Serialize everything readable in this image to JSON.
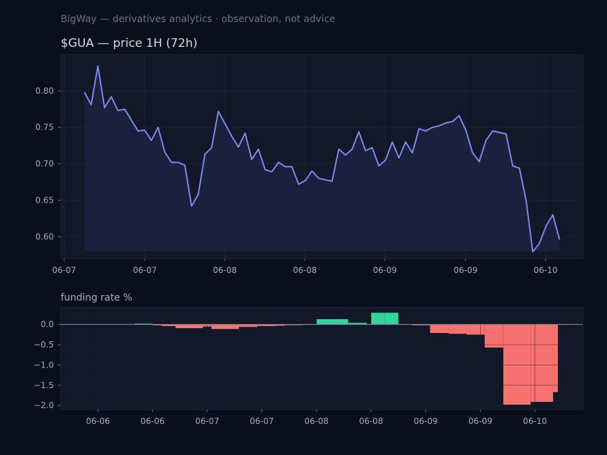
{
  "header": {
    "note": "BigWay — derivatives analytics · observation, not advice"
  },
  "colors": {
    "background": "#0a0f1c",
    "panel": "#121828",
    "price_line": "#7f89f0",
    "price_fill": "#1b2340",
    "funding_positive": "#34d399",
    "funding_negative": "#f87171"
  },
  "chart_data": [
    {
      "type": "area",
      "title": "$GUA — price 1H (72h)",
      "xlabel": "",
      "ylabel": "",
      "ylim": [
        0.57,
        0.85
      ],
      "grid": true,
      "y_ticks": [
        0.6,
        0.65,
        0.7,
        0.75,
        0.8
      ],
      "y_tick_labels": [
        "0.60",
        "0.65",
        "0.70",
        "0.75",
        "0.80"
      ],
      "x_tick_labels": [
        "06-07",
        "06-07",
        "06-08",
        "06-08",
        "06-09",
        "06-09",
        "06-10"
      ],
      "series": [
        {
          "values": [
            0.798,
            0.781,
            0.834,
            0.777,
            0.792,
            0.773,
            0.775,
            0.76,
            0.745,
            0.746,
            0.732,
            0.75,
            0.716,
            0.702,
            0.702,
            0.698,
            0.642,
            0.658,
            0.713,
            0.722,
            0.772,
            0.755,
            0.738,
            0.723,
            0.742,
            0.706,
            0.72,
            0.692,
            0.689,
            0.702,
            0.696,
            0.696,
            0.672,
            0.677,
            0.69,
            0.68,
            0.678,
            0.676,
            0.72,
            0.712,
            0.72,
            0.744,
            0.718,
            0.722,
            0.697,
            0.705,
            0.73,
            0.708,
            0.73,
            0.715,
            0.748,
            0.745,
            0.75,
            0.752,
            0.756,
            0.758,
            0.766,
            0.746,
            0.715,
            0.703,
            0.732,
            0.745,
            0.743,
            0.741,
            0.697,
            0.694,
            0.65,
            0.579,
            0.591,
            0.615,
            0.63,
            0.596
          ]
        }
      ]
    },
    {
      "type": "bar",
      "title": "funding rate %",
      "xlabel": "",
      "ylabel": "",
      "ylim": [
        -2.1,
        0.42
      ],
      "grid": true,
      "y_ticks": [
        0.0,
        -0.5,
        -1.0,
        -1.5,
        -2.0
      ],
      "y_tick_labels": [
        "0.0",
        "−0.5",
        "−1.0",
        "−1.5",
        "−2.0"
      ],
      "x_tick_labels": [
        "06-06",
        "06-06",
        "06-07",
        "06-07",
        "06-08",
        "06-08",
        "06-09",
        "06-09",
        "06-10"
      ],
      "x_tick_positions": [
        0,
        1,
        2,
        3,
        4,
        5,
        6,
        7,
        8
      ],
      "baseline": 0,
      "bars": [
        {
          "start": -0.28,
          "end": 0.0,
          "value": 0.0
        },
        {
          "start": 0.0,
          "end": 0.33,
          "value": 0.0
        },
        {
          "start": 0.33,
          "end": 0.67,
          "value": 0.0
        },
        {
          "start": 0.67,
          "end": 1.0,
          "value": 0.02
        },
        {
          "start": 1.0,
          "end": 1.17,
          "value": -0.02
        },
        {
          "start": 1.17,
          "end": 1.42,
          "value": -0.04
        },
        {
          "start": 1.42,
          "end": 1.92,
          "value": -0.09
        },
        {
          "start": 1.92,
          "end": 2.08,
          "value": -0.05
        },
        {
          "start": 2.08,
          "end": 2.58,
          "value": -0.11
        },
        {
          "start": 2.58,
          "end": 2.92,
          "value": -0.06
        },
        {
          "start": 2.92,
          "end": 3.25,
          "value": -0.04
        },
        {
          "start": 3.25,
          "end": 3.42,
          "value": -0.03
        },
        {
          "start": 3.42,
          "end": 3.75,
          "value": -0.01
        },
        {
          "start": 3.75,
          "end": 4.0,
          "value": 0.01
        },
        {
          "start": 4.0,
          "end": 4.25,
          "value": 0.13
        },
        {
          "start": 4.25,
          "end": 4.58,
          "value": 0.13
        },
        {
          "start": 4.58,
          "end": 4.92,
          "value": 0.04
        },
        {
          "start": 4.92,
          "end": 5.0,
          "value": 0.0
        },
        {
          "start": 5.0,
          "end": 5.25,
          "value": 0.29
        },
        {
          "start": 5.25,
          "end": 5.5,
          "value": 0.29
        },
        {
          "start": 5.5,
          "end": 5.75,
          "value": 0.0
        },
        {
          "start": 5.75,
          "end": 6.0,
          "value": -0.02
        },
        {
          "start": 6.0,
          "end": 6.08,
          "value": -0.02
        },
        {
          "start": 6.08,
          "end": 6.42,
          "value": -0.21
        },
        {
          "start": 6.42,
          "end": 6.75,
          "value": -0.23
        },
        {
          "start": 6.75,
          "end": 7.0,
          "value": -0.25
        },
        {
          "start": 7.0,
          "end": 7.08,
          "value": -0.25
        },
        {
          "start": 7.08,
          "end": 7.42,
          "value": -0.57
        },
        {
          "start": 7.42,
          "end": 7.92,
          "value": -1.98
        },
        {
          "start": 7.92,
          "end": 8.33,
          "value": -1.91
        },
        {
          "start": 8.33,
          "end": 8.42,
          "value": -1.67
        }
      ]
    }
  ]
}
